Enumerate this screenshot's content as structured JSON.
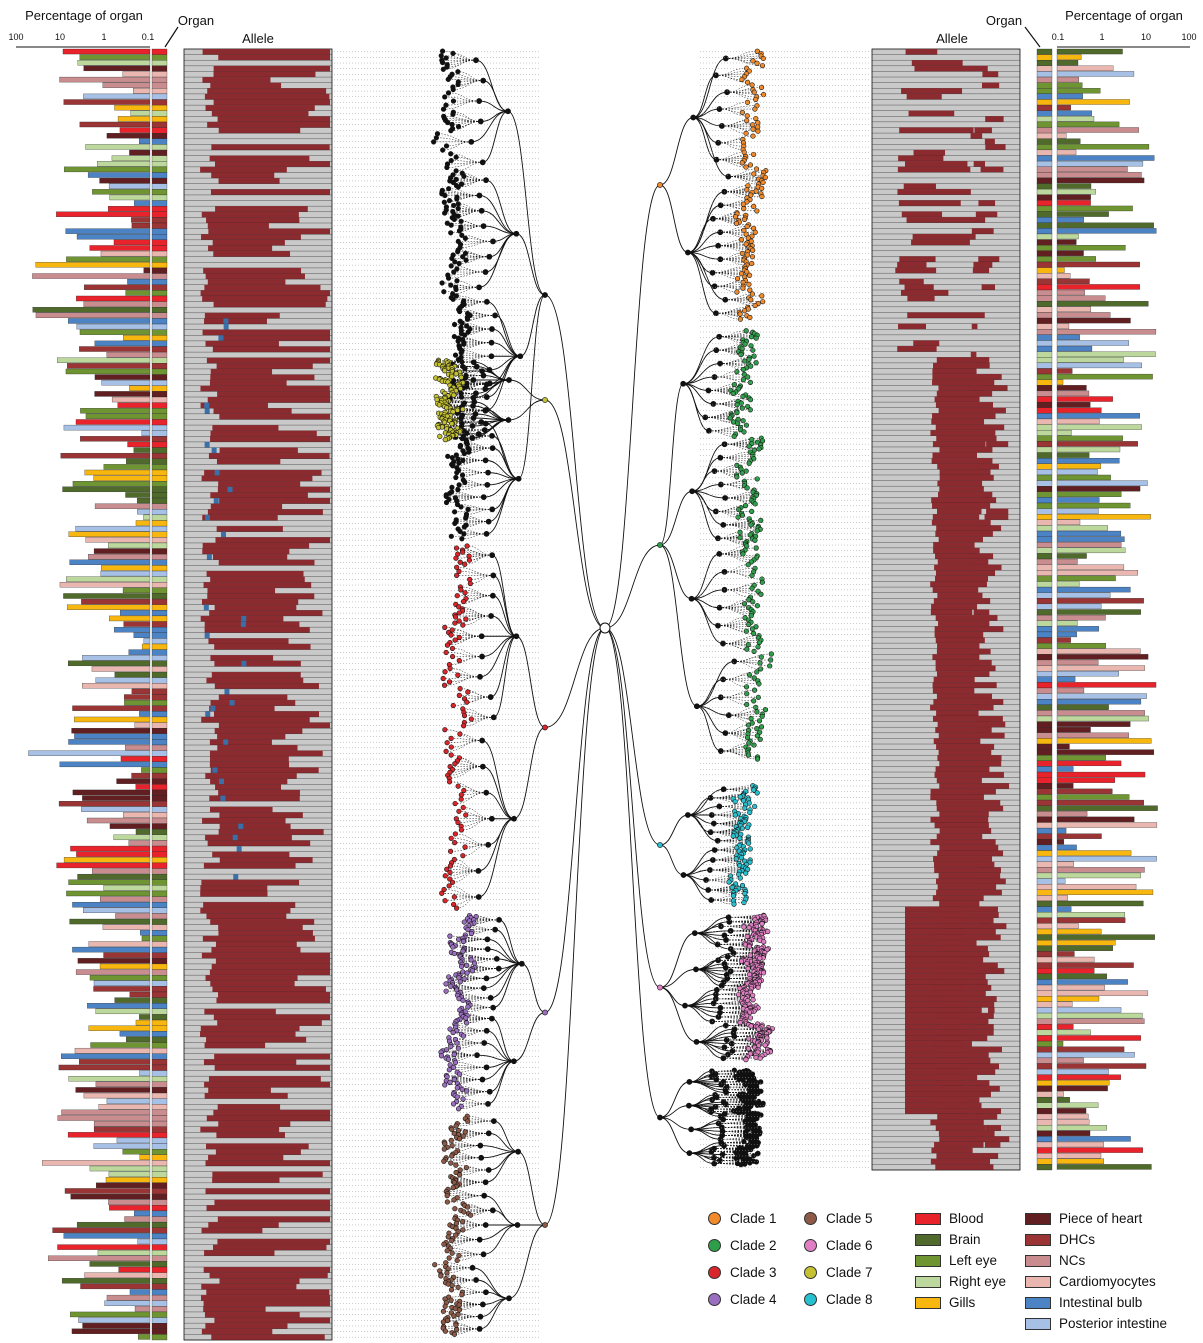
{
  "labels": {
    "left_pct_title": "Percentage of organ",
    "left_organ_title": "Organ",
    "left_allele_title": "Allele",
    "right_allele_title": "Allele",
    "right_organ_title": "Organ",
    "right_pct_title": "Percentage of organ"
  },
  "left_axis_ticks": [
    "100",
    "10",
    "1",
    "0.1"
  ],
  "right_axis_ticks": [
    "0.1",
    "1",
    "10",
    "100"
  ],
  "colors": {
    "allele_red": "#8b2a2f",
    "allele_gray": "#c9c9c9",
    "allele_blue": "#3b6fa8",
    "line": "#111111",
    "dotted": "#9a9a9a"
  },
  "clades": [
    {
      "label": "Clade 1",
      "color": "#f08a2a"
    },
    {
      "label": "Clade 2",
      "color": "#2e9e4a"
    },
    {
      "label": "Clade 3",
      "color": "#d9262a"
    },
    {
      "label": "Clade 4",
      "color": "#9a6fc0"
    },
    {
      "label": "Clade 5",
      "color": "#8d5a48"
    },
    {
      "label": "Clade 6",
      "color": "#e07fc4"
    },
    {
      "label": "Clade 7",
      "color": "#c4c232"
    },
    {
      "label": "Clade 8",
      "color": "#27c0cf"
    }
  ],
  "organs": [
    {
      "label": "Blood",
      "color": "#e8232b"
    },
    {
      "label": "Brain",
      "color": "#4f6a2a"
    },
    {
      "label": "Left eye",
      "color": "#6f9432"
    },
    {
      "label": "Right eye",
      "color": "#bcd89c"
    },
    {
      "label": "Gills",
      "color": "#f8b70f"
    },
    {
      "label": "Piece of heart",
      "color": "#621f22"
    },
    {
      "label": "DHCs",
      "color": "#9b3434"
    },
    {
      "label": "NCs",
      "color": "#c98d8f"
    },
    {
      "label": "Cardiomyocytes",
      "color": "#e9b6b0"
    },
    {
      "label": "Intestinal bulb",
      "color": "#4b83c4"
    },
    {
      "label": "Posterior intestine",
      "color": "#a6c0e6"
    }
  ]
}
